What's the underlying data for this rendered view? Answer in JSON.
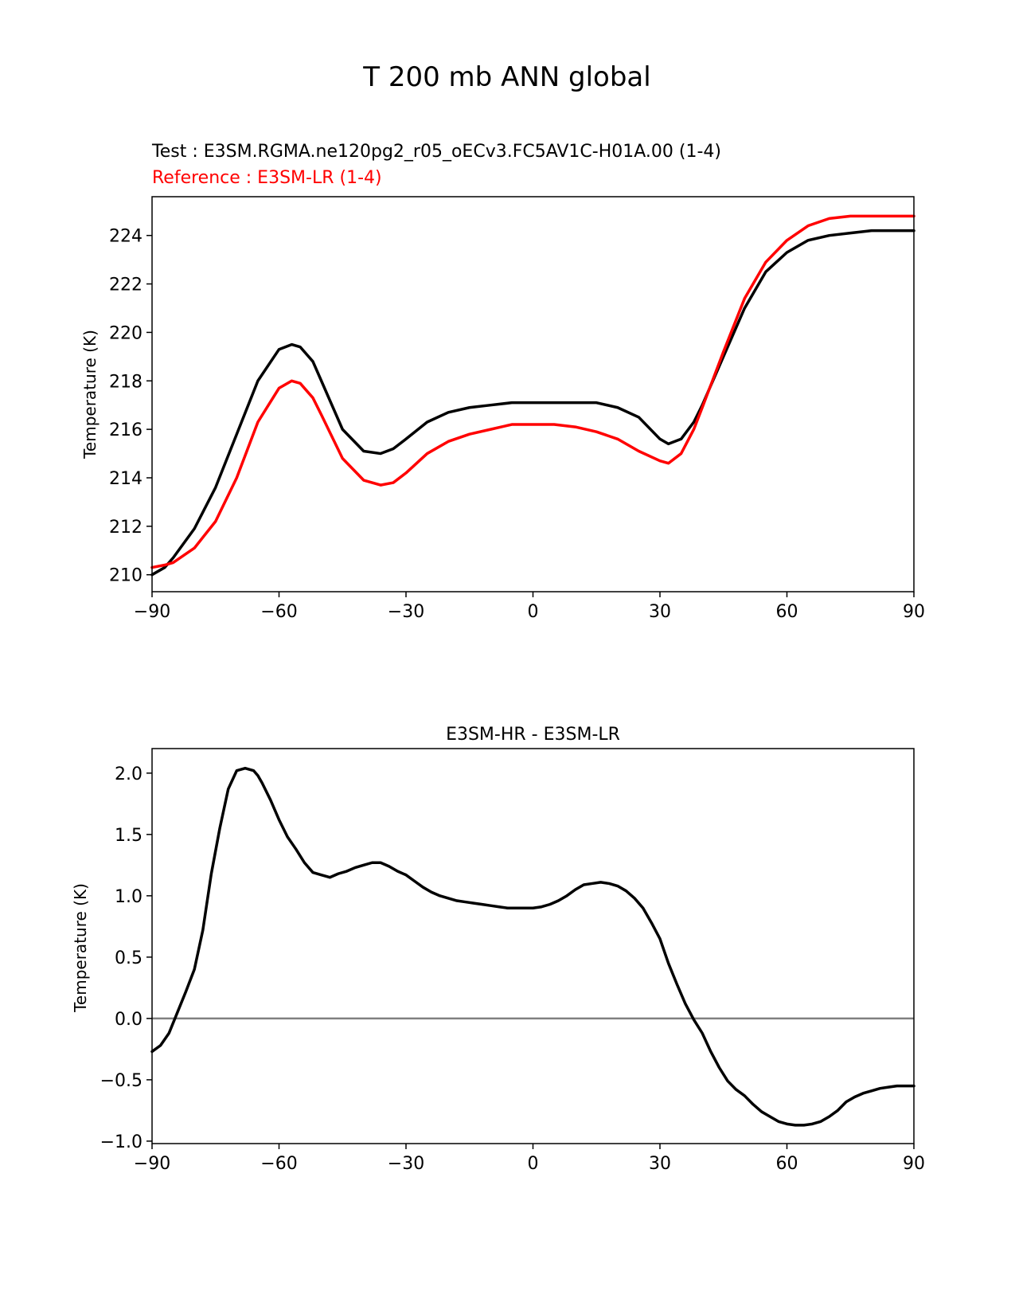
{
  "suptitle": "T 200 mb ANN global",
  "colors": {
    "test": "#000000",
    "reference": "#ff0000",
    "zero_line": "#808080",
    "axis": "#000000"
  },
  "chart_data": [
    {
      "type": "line",
      "title": "",
      "test_label": "Test : E3SM.RGMA.ne120pg2_r05_oECv3.FC5AV1C-H01A.00 (1-4)",
      "reference_label": "Reference : E3SM-LR (1-4)",
      "xlabel": "",
      "ylabel": "Temperature (K)",
      "xlim": [
        -90,
        90
      ],
      "ylim": [
        209.3,
        225.6
      ],
      "xticks": [
        -90,
        -60,
        -30,
        0,
        30,
        60,
        90
      ],
      "xtick_labels": [
        "−90",
        "−60",
        "−30",
        "0",
        "30",
        "60",
        "90"
      ],
      "yticks": [
        210,
        212,
        214,
        216,
        218,
        220,
        222,
        224
      ],
      "ytick_labels": [
        "210",
        "212",
        "214",
        "216",
        "218",
        "220",
        "222",
        "224"
      ],
      "series": [
        {
          "name": "Test",
          "color": "#000000",
          "x": [
            -90,
            -87,
            -85,
            -80,
            -75,
            -70,
            -65,
            -60,
            -57,
            -55,
            -52,
            -50,
            -45,
            -40,
            -36,
            -33,
            -30,
            -25,
            -20,
            -15,
            -10,
            -5,
            0,
            5,
            10,
            15,
            20,
            25,
            30,
            32,
            35,
            38,
            40,
            45,
            50,
            55,
            60,
            65,
            70,
            75,
            80,
            85,
            90
          ],
          "y": [
            210.0,
            210.3,
            210.7,
            211.9,
            213.6,
            215.8,
            218.0,
            219.3,
            219.5,
            219.4,
            218.8,
            218.0,
            216.0,
            215.1,
            215.0,
            215.2,
            215.6,
            216.3,
            216.7,
            216.9,
            217.0,
            217.1,
            217.1,
            217.1,
            217.1,
            217.1,
            216.9,
            216.5,
            215.6,
            215.4,
            215.6,
            216.3,
            217.0,
            219.0,
            221.0,
            222.5,
            223.3,
            223.8,
            224.0,
            224.1,
            224.2,
            224.2,
            224.2
          ]
        },
        {
          "name": "Reference",
          "color": "#ff0000",
          "x": [
            -90,
            -87,
            -85,
            -80,
            -75,
            -70,
            -65,
            -60,
            -57,
            -55,
            -52,
            -50,
            -45,
            -40,
            -36,
            -33,
            -30,
            -25,
            -20,
            -15,
            -10,
            -5,
            0,
            5,
            10,
            15,
            20,
            25,
            30,
            32,
            35,
            38,
            40,
            45,
            50,
            55,
            60,
            65,
            70,
            75,
            80,
            85,
            90
          ],
          "y": [
            210.3,
            210.4,
            210.5,
            211.1,
            212.2,
            214.0,
            216.3,
            217.7,
            218.0,
            217.9,
            217.3,
            216.6,
            214.8,
            213.9,
            213.7,
            213.8,
            214.2,
            215.0,
            215.5,
            215.8,
            216.0,
            216.2,
            216.2,
            216.2,
            216.1,
            215.9,
            215.6,
            215.1,
            214.7,
            214.6,
            215.0,
            216.0,
            216.9,
            219.2,
            221.4,
            222.9,
            223.8,
            224.4,
            224.7,
            224.8,
            224.8,
            224.8,
            224.8
          ]
        }
      ]
    },
    {
      "type": "line",
      "title": "E3SM-HR - E3SM-LR",
      "xlabel": "",
      "ylabel": "Temperature (K)",
      "xlim": [
        -90,
        90
      ],
      "ylim": [
        -1.02,
        2.2
      ],
      "xticks": [
        -90,
        -60,
        -30,
        0,
        30,
        60,
        90
      ],
      "xtick_labels": [
        "−90",
        "−60",
        "−30",
        "0",
        "30",
        "60",
        "90"
      ],
      "yticks": [
        -1.0,
        -0.5,
        0.0,
        0.5,
        1.0,
        1.5,
        2.0
      ],
      "ytick_labels": [
        "−1.0",
        "−0.5",
        "0.0",
        "0.5",
        "1.0",
        "1.5",
        "2.0"
      ],
      "zero_line": 0.0,
      "series": [
        {
          "name": "E3SM-HR - E3SM-LR",
          "color": "#000000",
          "x": [
            -90,
            -88,
            -86,
            -84,
            -82,
            -80,
            -78,
            -76,
            -74,
            -72,
            -70,
            -68,
            -66,
            -65,
            -64,
            -62,
            -60,
            -58,
            -56,
            -54,
            -52,
            -50,
            -48,
            -46,
            -44,
            -42,
            -40,
            -38,
            -36,
            -34,
            -32,
            -30,
            -28,
            -26,
            -24,
            -22,
            -20,
            -18,
            -16,
            -14,
            -12,
            -10,
            -8,
            -6,
            -4,
            -2,
            0,
            2,
            4,
            6,
            8,
            10,
            12,
            14,
            16,
            18,
            20,
            22,
            24,
            26,
            28,
            30,
            32,
            34,
            36,
            38,
            40,
            42,
            44,
            46,
            48,
            50,
            52,
            54,
            56,
            58,
            60,
            62,
            64,
            66,
            68,
            70,
            72,
            74,
            76,
            78,
            80,
            82,
            84,
            86,
            88,
            90
          ],
          "y": [
            -0.27,
            -0.22,
            -0.12,
            0.05,
            0.22,
            0.4,
            0.72,
            1.18,
            1.55,
            1.87,
            2.02,
            2.04,
            2.02,
            1.98,
            1.92,
            1.78,
            1.62,
            1.48,
            1.38,
            1.27,
            1.19,
            1.17,
            1.15,
            1.18,
            1.2,
            1.23,
            1.25,
            1.27,
            1.27,
            1.24,
            1.2,
            1.17,
            1.12,
            1.07,
            1.03,
            1.0,
            0.98,
            0.96,
            0.95,
            0.94,
            0.93,
            0.92,
            0.91,
            0.9,
            0.9,
            0.9,
            0.9,
            0.91,
            0.93,
            0.96,
            1.0,
            1.05,
            1.09,
            1.1,
            1.11,
            1.1,
            1.08,
            1.04,
            0.98,
            0.9,
            0.78,
            0.65,
            0.45,
            0.28,
            0.12,
            -0.01,
            -0.12,
            -0.27,
            -0.4,
            -0.51,
            -0.58,
            -0.63,
            -0.7,
            -0.76,
            -0.8,
            -0.84,
            -0.86,
            -0.87,
            -0.87,
            -0.86,
            -0.84,
            -0.8,
            -0.75,
            -0.68,
            -0.64,
            -0.61,
            -0.59,
            -0.57,
            -0.56,
            -0.55,
            -0.55,
            -0.55
          ]
        }
      ]
    }
  ]
}
